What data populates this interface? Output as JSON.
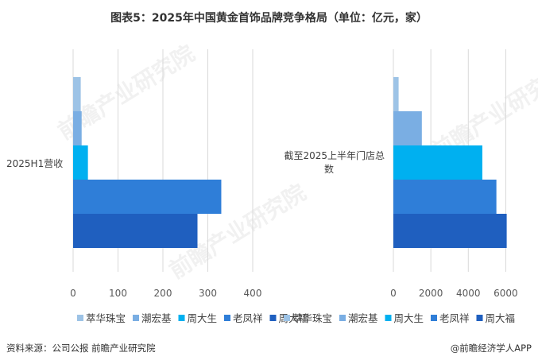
{
  "title": "图表5：2025年中国黄金首饰品牌竞争格局（单位：亿元，家）",
  "footer": {
    "source": "资料来源：公司公报 前瞻产业研究院",
    "credit": "@前瞻经济学人APP"
  },
  "watermark": "前瞻产业研究院",
  "chart_data": [
    {
      "type": "bar",
      "orientation": "horizontal",
      "categories": [
        "2025H1营收"
      ],
      "series": [
        {
          "name": "萃华珠宝",
          "values": [
            17
          ],
          "color": "#9dc3e6"
        },
        {
          "name": "潮宏基",
          "values": [
            19
          ],
          "color": "#7aaee3"
        },
        {
          "name": "周大生",
          "values": [
            33
          ],
          "color": "#00b0f0"
        },
        {
          "name": "老凤祥",
          "values": [
            330
          ],
          "color": "#2f7ed8"
        },
        {
          "name": "周大福",
          "values": [
            277
          ],
          "color": "#1f5fbf"
        }
      ],
      "xticks": [
        "0",
        "100",
        "200",
        "300",
        "400"
      ],
      "xlim": [
        0,
        400
      ],
      "grid": true,
      "legend": "bottom"
    },
    {
      "type": "bar",
      "orientation": "horizontal",
      "categories": [
        "截至2025上半年门店总数"
      ],
      "series": [
        {
          "name": "萃华珠宝",
          "values": [
            280
          ],
          "color": "#9dc3e6"
        },
        {
          "name": "潮宏基",
          "values": [
            1520
          ],
          "color": "#7aaee3"
        },
        {
          "name": "周大生",
          "values": [
            4750
          ],
          "color": "#00b0f0"
        },
        {
          "name": "老凤祥",
          "values": [
            5500
          ],
          "color": "#2f7ed8"
        },
        {
          "name": "周大福",
          "values": [
            6050
          ],
          "color": "#1f5fbf"
        }
      ],
      "xticks": [
        "0",
        "2000",
        "4000",
        "6000"
      ],
      "xlim": [
        0,
        7000
      ],
      "grid": true,
      "legend": "bottom"
    }
  ]
}
